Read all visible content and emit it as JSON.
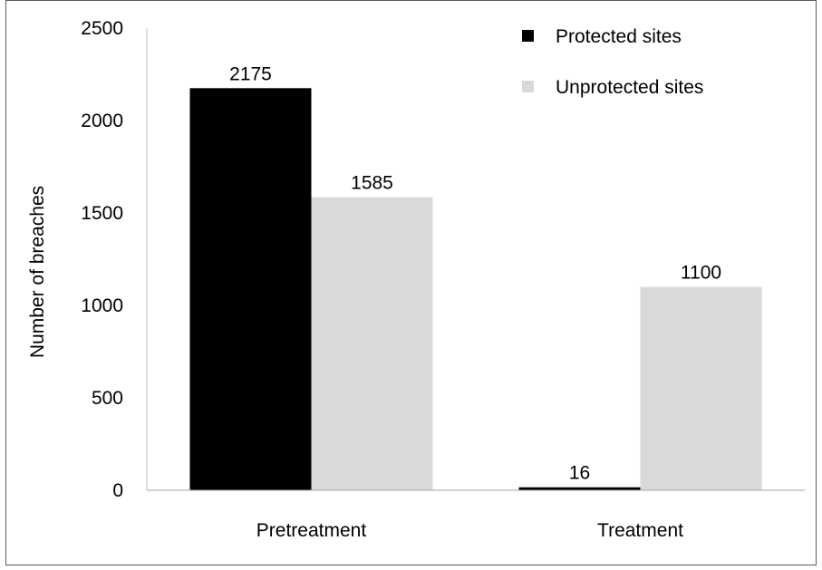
{
  "chart_data": {
    "type": "bar",
    "title": "",
    "xlabel": "",
    "ylabel": "Number of breaches",
    "categories": [
      "Pretreatment",
      "Treatment"
    ],
    "series": [
      {
        "name": "Protected sites",
        "values": [
          2175,
          16
        ],
        "color": "#000000"
      },
      {
        "name": "Unprotected sites",
        "values": [
          1585,
          1100
        ],
        "color": "#d9d9d9"
      }
    ],
    "ylim": [
      0,
      2500
    ],
    "yticks": [
      0,
      500,
      1000,
      1500,
      2000,
      2500
    ],
    "grid": false,
    "legend_position": "top-right",
    "data_labels": true
  }
}
